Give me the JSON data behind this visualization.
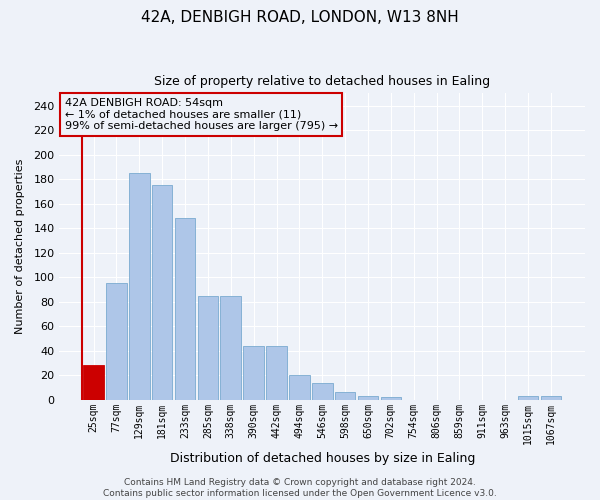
{
  "title": "42A, DENBIGH ROAD, LONDON, W13 8NH",
  "subtitle": "Size of property relative to detached houses in Ealing",
  "xlabel": "Distribution of detached houses by size in Ealing",
  "ylabel": "Number of detached properties",
  "categories": [
    "25sqm",
    "77sqm",
    "129sqm",
    "181sqm",
    "233sqm",
    "285sqm",
    "338sqm",
    "390sqm",
    "442sqm",
    "494sqm",
    "546sqm",
    "598sqm",
    "650sqm",
    "702sqm",
    "754sqm",
    "806sqm",
    "859sqm",
    "911sqm",
    "963sqm",
    "1015sqm",
    "1067sqm"
  ],
  "values": [
    28,
    95,
    185,
    175,
    148,
    85,
    85,
    44,
    44,
    20,
    14,
    6,
    3,
    2,
    0,
    0,
    0,
    0,
    0,
    3,
    3
  ],
  "bar_color": "#aec6e8",
  "bar_edge_color": "#7aaad0",
  "highlight_bar_index": 0,
  "highlight_color": "#cc0000",
  "annotation_text": "42A DENBIGH ROAD: 54sqm\n← 1% of detached houses are smaller (11)\n99% of semi-detached houses are larger (795) →",
  "annotation_box_color": "#cc0000",
  "ylim": [
    0,
    250
  ],
  "yticks": [
    0,
    20,
    40,
    60,
    80,
    100,
    120,
    140,
    160,
    180,
    200,
    220,
    240
  ],
  "footer_line1": "Contains HM Land Registry data © Crown copyright and database right 2024.",
  "footer_line2": "Contains public sector information licensed under the Open Government Licence v3.0.",
  "background_color": "#eef2f9",
  "grid_color": "#ffffff"
}
